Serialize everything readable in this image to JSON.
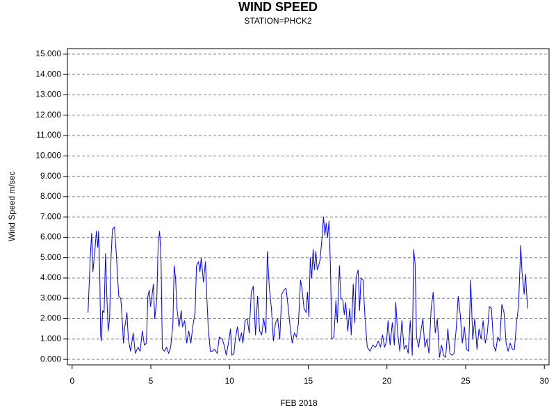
{
  "chart_data": {
    "type": "line",
    "title": "WIND SPEED",
    "subtitle": "STATION=PHCK2",
    "x_label": "FEB 2018",
    "y_label": "Wind Speed m/sec",
    "color": "#0000ff",
    "grid": true,
    "xlim": [
      -0.3,
      30.3
    ],
    "ylim": [
      -0.27,
      15.27
    ],
    "xticks": [
      0,
      5,
      10,
      15,
      20,
      25,
      30
    ],
    "yticks": [
      {
        "value": 0,
        "label": "0.000"
      },
      {
        "value": 1,
        "label": "1.000"
      },
      {
        "value": 2,
        "label": "2.000"
      },
      {
        "value": 3,
        "label": "3.000"
      },
      {
        "value": 4,
        "label": "4.000"
      },
      {
        "value": 5,
        "label": "5.000"
      },
      {
        "value": 6,
        "label": "6.000"
      },
      {
        "value": 7,
        "label": "7.000"
      },
      {
        "value": 8,
        "label": "8.000"
      },
      {
        "value": 9,
        "label": "9.000"
      },
      {
        "value": 10,
        "label": "10.000"
      },
      {
        "value": 11,
        "label": "11.000"
      },
      {
        "value": 12,
        "label": "12.000"
      },
      {
        "value": 13,
        "label": "13.000"
      },
      {
        "value": 14,
        "label": "14.000"
      },
      {
        "value": 15,
        "label": "15.000"
      }
    ],
    "x": [
      1.01,
      1.15,
      1.24,
      1.32,
      1.46,
      1.54,
      1.63,
      1.68,
      1.76,
      1.81,
      1.85,
      1.94,
      2.03,
      2.12,
      2.21,
      2.29,
      2.38,
      2.47,
      2.56,
      2.69,
      2.82,
      2.96,
      3.09,
      3.18,
      3.26,
      3.35,
      3.48,
      3.57,
      3.71,
      3.88,
      4.01,
      4.19,
      4.32,
      4.46,
      4.59,
      4.72,
      4.81,
      4.9,
      4.98,
      5.07,
      5.16,
      5.25,
      5.38,
      5.47,
      5.56,
      5.65,
      5.73,
      5.87,
      6.0,
      6.13,
      6.26,
      6.4,
      6.48,
      6.57,
      6.66,
      6.79,
      6.93,
      7.01,
      7.15,
      7.28,
      7.41,
      7.54,
      7.68,
      7.81,
      7.9,
      8.03,
      8.12,
      8.2,
      8.34,
      8.47,
      8.56,
      8.65,
      8.78,
      8.91,
      9.04,
      9.22,
      9.35,
      9.53,
      9.66,
      9.79,
      9.93,
      10.06,
      10.15,
      10.28,
      10.37,
      10.5,
      10.63,
      10.76,
      10.85,
      10.98,
      11.12,
      11.25,
      11.38,
      11.51,
      11.65,
      11.78,
      11.91,
      12.04,
      12.17,
      12.31,
      12.4,
      12.53,
      12.66,
      12.79,
      12.92,
      13.06,
      13.19,
      13.32,
      13.45,
      13.59,
      13.72,
      13.85,
      13.98,
      14.12,
      14.25,
      14.38,
      14.51,
      14.6,
      14.73,
      14.87,
      14.95,
      15.04,
      15.13,
      15.22,
      15.31,
      15.39,
      15.48,
      15.57,
      15.66,
      15.75,
      15.88,
      15.97,
      16.06,
      16.14,
      16.23,
      16.32,
      16.41,
      16.5,
      16.63,
      16.76,
      16.85,
      16.98,
      17.07,
      17.2,
      17.29,
      17.38,
      17.51,
      17.64,
      17.73,
      17.86,
      17.95,
      18.04,
      18.17,
      18.26,
      18.35,
      18.48,
      18.61,
      18.75,
      18.92,
      19.1,
      19.28,
      19.45,
      19.59,
      19.72,
      19.85,
      19.98,
      20.07,
      20.2,
      20.34,
      20.47,
      20.56,
      20.69,
      20.82,
      20.95,
      21.09,
      21.22,
      21.35,
      21.48,
      21.61,
      21.7,
      21.79,
      21.88,
      22.01,
      22.14,
      22.28,
      22.41,
      22.54,
      22.67,
      22.81,
      22.94,
      23.07,
      23.2,
      23.34,
      23.47,
      23.6,
      23.73,
      23.87,
      24.0,
      24.13,
      24.26,
      24.39,
      24.53,
      24.66,
      24.79,
      24.92,
      25.06,
      25.19,
      25.32,
      25.45,
      25.58,
      25.72,
      25.85,
      25.98,
      26.11,
      26.25,
      26.38,
      26.51,
      26.64,
      26.78,
      26.91,
      27.04,
      27.17,
      27.3,
      27.44,
      27.57,
      27.7,
      27.83,
      27.97,
      28.1,
      28.23,
      28.36,
      28.5,
      28.58,
      28.72,
      28.8,
      28.94
    ],
    "values": [
      2.3,
      5.0,
      6.2,
      4.3,
      5.5,
      6.3,
      5.5,
      6.3,
      4.0,
      1.2,
      0.9,
      2.4,
      2.3,
      5.2,
      3.0,
      1.4,
      2.0,
      5.0,
      6.4,
      6.5,
      5.0,
      3.1,
      3.0,
      2.0,
      0.8,
      1.6,
      2.3,
      1.0,
      0.4,
      1.3,
      0.3,
      0.6,
      0.4,
      1.4,
      0.7,
      0.8,
      3.1,
      3.4,
      2.6,
      3.1,
      3.7,
      2.0,
      3.0,
      5.8,
      6.3,
      4.8,
      0.5,
      0.4,
      0.6,
      0.3,
      0.6,
      1.7,
      4.6,
      4.0,
      2.5,
      1.6,
      2.4,
      1.6,
      1.9,
      0.8,
      1.4,
      0.8,
      1.7,
      2.3,
      4.6,
      4.8,
      4.3,
      5.0,
      3.8,
      4.8,
      3.0,
      1.5,
      0.4,
      0.4,
      0.5,
      0.3,
      1.1,
      1.0,
      0.7,
      0.2,
      0.8,
      1.5,
      0.2,
      0.3,
      1.0,
      1.6,
      0.9,
      1.3,
      0.8,
      1.9,
      2.0,
      1.3,
      3.3,
      3.6,
      1.2,
      3.1,
      1.4,
      1.2,
      2.0,
      1.3,
      5.3,
      3.5,
      2.5,
      0.9,
      1.8,
      2.0,
      1.0,
      3.2,
      3.4,
      3.5,
      2.6,
      1.6,
      0.8,
      1.3,
      1.1,
      1.8,
      3.9,
      3.5,
      2.5,
      2.3,
      3.3,
      2.1,
      5.0,
      4.0,
      5.4,
      4.4,
      5.3,
      4.4,
      4.6,
      4.9,
      6.0,
      7.0,
      6.1,
      6.7,
      6.0,
      6.8,
      4.5,
      1.0,
      1.1,
      2.9,
      1.8,
      4.6,
      3.0,
      2.9,
      2.2,
      2.8,
      1.4,
      2.5,
      1.2,
      3.7,
      1.8,
      4.0,
      4.4,
      2.4,
      4.0,
      3.9,
      2.0,
      0.6,
      0.4,
      0.7,
      0.6,
      0.9,
      0.6,
      1.2,
      0.6,
      0.9,
      1.9,
      0.7,
      1.8,
      0.7,
      2.8,
      1.2,
      0.4,
      1.9,
      0.5,
      0.7,
      0.3,
      1.9,
      0.2,
      5.4,
      4.7,
      1.1,
      0.6,
      1.3,
      2.0,
      0.6,
      1.0,
      0.3,
      2.5,
      3.3,
      1.3,
      2.0,
      0.1,
      0.7,
      0.2,
      0.1,
      1.5,
      0.3,
      0.2,
      0.3,
      1.4,
      3.1,
      2.2,
      0.8,
      1.6,
      0.5,
      0.4,
      3.9,
      1.0,
      2.0,
      0.5,
      1.5,
      1.0,
      1.9,
      0.8,
      1.3,
      2.6,
      2.5,
      0.7,
      0.4,
      1.1,
      0.9,
      2.7,
      2.3,
      0.8,
      0.4,
      0.8,
      0.5,
      0.5,
      1.8,
      2.6,
      5.6,
      4.3,
      3.2,
      4.2,
      2.5
    ]
  }
}
